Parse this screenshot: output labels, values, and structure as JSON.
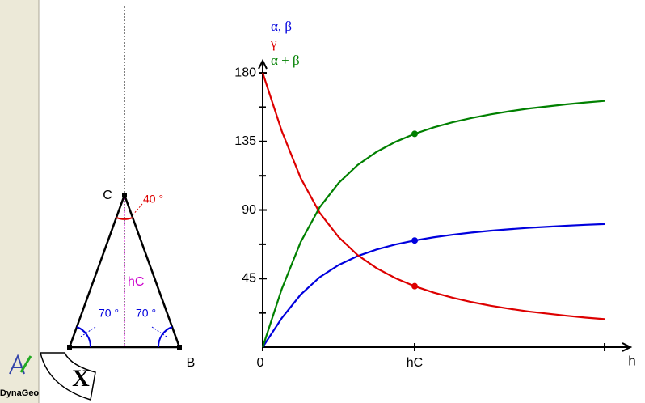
{
  "app": {
    "logo": "DynaGeo"
  },
  "figure": {
    "vertex_c": "C",
    "vertex_b": "B",
    "angle_c": "40 °",
    "height": "hC",
    "angle_a": "70 °",
    "angle_b": "70 °"
  },
  "chart_data": {
    "type": "line",
    "x": [
      0,
      0.125,
      0.25,
      0.375,
      0.5,
      0.625,
      0.75,
      0.875,
      1,
      1.125,
      1.25,
      1.375,
      1.5,
      1.625,
      1.75,
      1.875,
      2,
      2.125,
      2.25
    ],
    "series": [
      {
        "name": "α, β",
        "color": "#0000dd",
        "values": [
          0,
          19.0,
          34.5,
          45.9,
          53.9,
          59.8,
          64.1,
          67.4,
          70,
          72.1,
          73.8,
          75.2,
          76.4,
          77.4,
          78.3,
          79.0,
          79.7,
          80.3,
          80.8
        ]
      },
      {
        "name": "γ",
        "color": "#dd0000",
        "values": [
          180,
          142,
          111,
          88.2,
          72.2,
          60.4,
          51.8,
          45.2,
          40,
          35.8,
          32.4,
          29.6,
          27.2,
          25.2,
          23.4,
          22,
          20.6,
          19.4,
          18.4
        ]
      },
      {
        "name": "α + β",
        "color": "#008000",
        "values": [
          0,
          38.0,
          69.0,
          91.8,
          107.8,
          119.6,
          128.2,
          134.8,
          140,
          144.2,
          147.6,
          150.4,
          152.8,
          154.8,
          156.6,
          158.0,
          159.4,
          160.6,
          161.6
        ]
      }
    ],
    "xlabel": "h",
    "xlim": [
      0,
      2.42
    ],
    "xticks": [
      0,
      {
        "value": 1,
        "label": "hC"
      },
      2.25
    ],
    "ylim": [
      0,
      188
    ],
    "yticks": [
      45,
      90,
      135,
      180
    ],
    "yticks_minor": [
      22.5,
      67.5,
      112.5,
      157.5
    ]
  }
}
